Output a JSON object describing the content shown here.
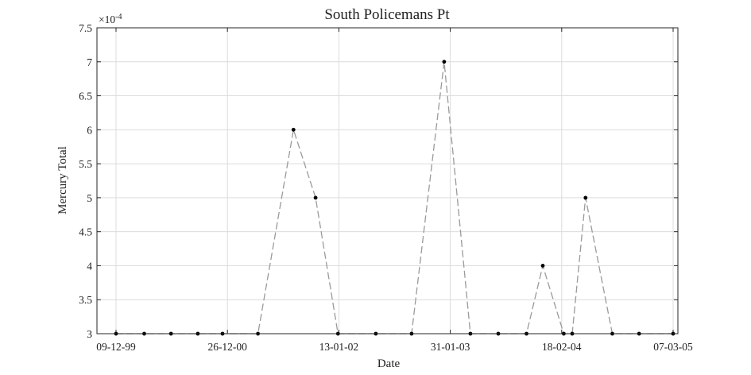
{
  "chart_data": {
    "type": "line",
    "title": "South Policemans Pt",
    "xlabel": "Date",
    "ylabel": "Mercury Total",
    "y_exponent_label": "×10",
    "y_exponent_power": "-4",
    "xlim": [
      "1999-12-09",
      "2005-03-07"
    ],
    "ylim": [
      3,
      7.5
    ],
    "x_tick_values": [
      "1999-12-09",
      "2000-12-26",
      "2002-01-13",
      "2003-01-31",
      "2004-02-18",
      "2005-03-07"
    ],
    "x_tick_labels": [
      "09-12-99",
      "26-12-00",
      "13-01-02",
      "31-01-03",
      "18-02-04",
      "07-03-05"
    ],
    "y_ticks": [
      3,
      3.5,
      4,
      4.5,
      5,
      5.5,
      6,
      6.5,
      7,
      7.5
    ],
    "y_tick_labels": [
      "3",
      "3.5",
      "4",
      "4.5",
      "5",
      "5.5",
      "6",
      "6.5",
      "7",
      "7.5"
    ],
    "grid": true,
    "series": [
      {
        "x": [
          "1999-12-09",
          "2000-03-15",
          "2000-06-15",
          "2000-09-15",
          "2000-12-09",
          "2001-04-10",
          "2001-08-10",
          "2001-10-25",
          "2002-01-10",
          "2002-05-20",
          "2002-09-20",
          "2003-01-10",
          "2003-04-10",
          "2003-07-15",
          "2003-10-20",
          "2003-12-15",
          "2004-02-25",
          "2004-03-25",
          "2004-05-10",
          "2004-08-10",
          "2004-11-10",
          "2005-03-07"
        ],
        "values": [
          3,
          3,
          3,
          3,
          3,
          3,
          6.0,
          5.0,
          3,
          3,
          3,
          7.0,
          3,
          3,
          3,
          4.0,
          3,
          3,
          5.0,
          3,
          3,
          3
        ]
      }
    ]
  }
}
